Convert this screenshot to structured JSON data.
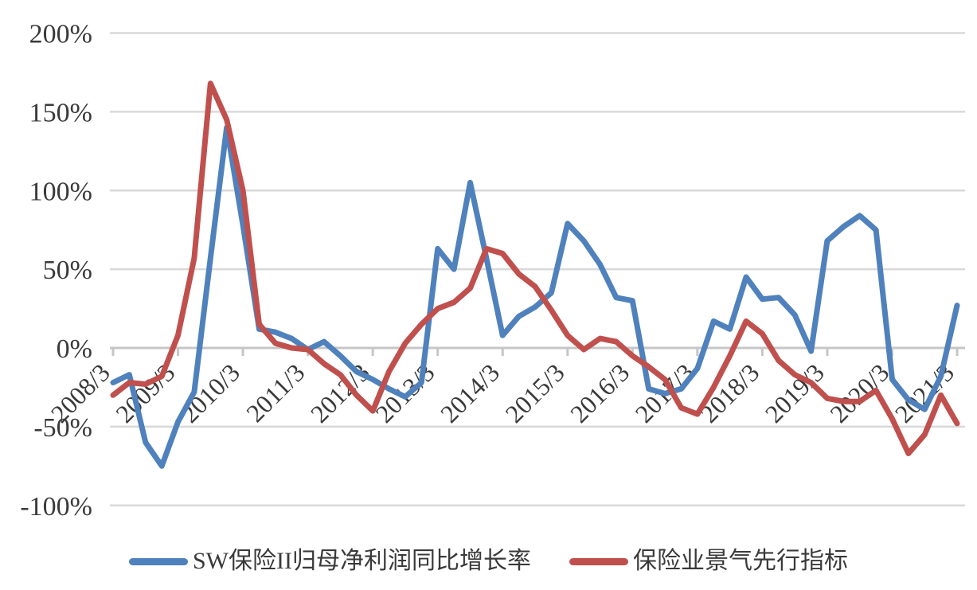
{
  "chart_data": {
    "type": "line",
    "title": "",
    "xlabel": "",
    "ylabel": "",
    "ylim": [
      -100,
      200
    ],
    "grid": true,
    "legend_position": "bottom",
    "y_ticks": [
      200,
      150,
      100,
      50,
      0,
      -50,
      -100
    ],
    "y_tick_labels": [
      "200%",
      "150%",
      "100%",
      "50%",
      "0%",
      "-50%",
      "-100%"
    ],
    "x_tick_labels": [
      "2008/3",
      "2009/3",
      "2010/3",
      "2011/3",
      "2012/3",
      "2013/3",
      "2014/3",
      "2015/3",
      "2016/3",
      "2017/3",
      "2018/3",
      "2019/3",
      "2020/3",
      "2021/3"
    ],
    "categories": [
      "2008/3",
      "2008/6",
      "2008/9",
      "2008/12",
      "2009/3",
      "2009/6",
      "2009/9",
      "2009/12",
      "2010/3",
      "2010/6",
      "2010/9",
      "2010/12",
      "2011/3",
      "2011/6",
      "2011/9",
      "2011/12",
      "2012/3",
      "2012/6",
      "2012/9",
      "2012/12",
      "2013/3",
      "2013/6",
      "2013/9",
      "2013/12",
      "2014/3",
      "2014/6",
      "2014/9",
      "2014/12",
      "2015/3",
      "2015/6",
      "2015/9",
      "2015/12",
      "2016/3",
      "2016/6",
      "2016/9",
      "2016/12",
      "2017/3",
      "2017/6",
      "2017/9",
      "2017/12",
      "2018/3",
      "2018/6",
      "2018/9",
      "2018/12",
      "2019/3",
      "2019/6",
      "2019/9",
      "2019/12",
      "2020/3",
      "2020/6",
      "2020/9",
      "2020/12",
      "2021/3"
    ],
    "series": [
      {
        "name": "SW保险II归母净利润同比增长率",
        "color": "#4F81BD",
        "values": [
          -22,
          -17,
          -60,
          -75,
          -47,
          -28,
          57,
          140,
          78,
          12,
          10,
          6,
          -1,
          4,
          -5,
          -15,
          -20,
          -26,
          -31,
          -22,
          63,
          50,
          105,
          57,
          8,
          20,
          26,
          35,
          79,
          68,
          53,
          32,
          30,
          -26,
          -29,
          -26,
          -13,
          17,
          12,
          45,
          31,
          32,
          21,
          -2,
          68,
          77,
          84,
          75,
          -20,
          -33,
          -39,
          -18,
          27
        ]
      },
      {
        "name": "保险业景气先行指标",
        "color": "#C0504D",
        "values": [
          -30,
          -22,
          -23,
          -18,
          8,
          57,
          168,
          145,
          100,
          15,
          3,
          0,
          -1,
          -10,
          -17,
          -30,
          -40,
          -15,
          3,
          15,
          25,
          29,
          38,
          63,
          60,
          47,
          39,
          24,
          8,
          -1,
          6,
          4,
          -5,
          -12,
          -20,
          -38,
          -42,
          -25,
          -5,
          17,
          9,
          -8,
          -17,
          -22,
          -32,
          -34,
          -34,
          -27,
          -45,
          -67,
          -55,
          -30,
          -48
        ]
      }
    ],
    "colors": {
      "gridline": "#D9D9D9",
      "axis_line": "#C6C6C6",
      "tick": "#C6C6C6",
      "label_text": "#3a3a3a"
    }
  }
}
